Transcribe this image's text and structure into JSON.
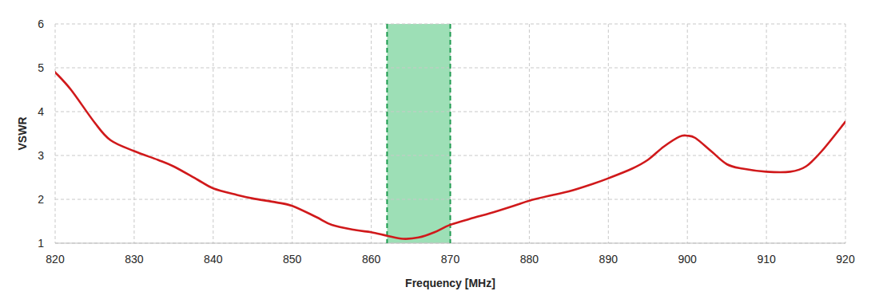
{
  "chart_data": {
    "type": "line",
    "x_label": "Frequency [MHz]",
    "y_label": "VSWR",
    "x": [
      820,
      822,
      825,
      827,
      830,
      833,
      835,
      838,
      840,
      843,
      845,
      848,
      850,
      853,
      855,
      858,
      860,
      862,
      864,
      866,
      868,
      870,
      873,
      875,
      878,
      880,
      883,
      885,
      888,
      890,
      893,
      895,
      897,
      899,
      900,
      901,
      903,
      905,
      907,
      910,
      913,
      915,
      917,
      920
    ],
    "series": [
      {
        "color": "#d0191b",
        "values": [
          4.9,
          4.5,
          3.75,
          3.35,
          3.1,
          2.9,
          2.75,
          2.45,
          2.25,
          2.1,
          2.02,
          1.93,
          1.85,
          1.6,
          1.42,
          1.3,
          1.25,
          1.17,
          1.1,
          1.13,
          1.25,
          1.42,
          1.58,
          1.68,
          1.85,
          1.97,
          2.1,
          2.18,
          2.35,
          2.48,
          2.7,
          2.9,
          3.2,
          3.43,
          3.45,
          3.4,
          3.1,
          2.8,
          2.7,
          2.63,
          2.63,
          2.75,
          3.1,
          3.77
        ]
      }
    ],
    "shaded_range": [
      862,
      870
    ],
    "xlim": [
      820,
      920
    ],
    "xticks": [
      820,
      830,
      840,
      850,
      860,
      870,
      880,
      890,
      900,
      910,
      920
    ],
    "ylim": [
      1,
      6
    ],
    "yticks": [
      1,
      2,
      3,
      4,
      5,
      6
    ],
    "grid": true
  }
}
